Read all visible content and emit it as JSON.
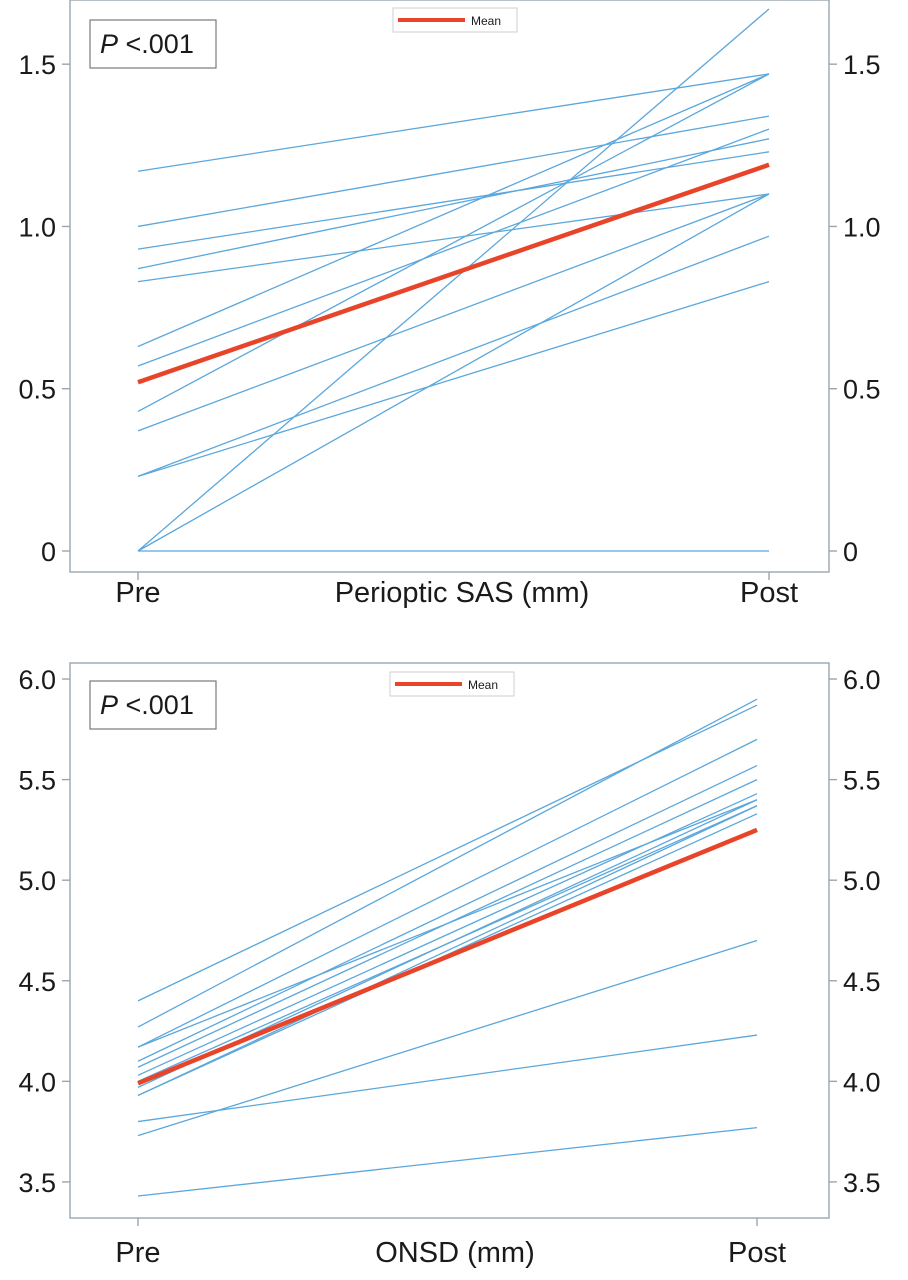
{
  "chart_data": [
    {
      "type": "line",
      "xlabel": "Perioptic SAS  (mm)",
      "ylabel": "",
      "x": [
        "Pre",
        "Post"
      ],
      "ylim": [
        0,
        1.67
      ],
      "yticks": [
        "0",
        "0.5",
        "1.0",
        "1.5"
      ],
      "ytick_values": [
        0,
        0.5,
        1.0,
        1.5
      ],
      "annotation": {
        "italic": "P",
        "text": " <.001"
      },
      "legend": {
        "label": "Mean",
        "position": "top-center"
      },
      "mean": {
        "name": "Mean",
        "color": "#e8442a",
        "values": [
          0.52,
          1.19
        ]
      },
      "individual_color": "#5ba7dc",
      "individual": [
        [
          1.17,
          1.47
        ],
        [
          1.0,
          1.34
        ],
        [
          0.93,
          1.23
        ],
        [
          0.87,
          1.27
        ],
        [
          0.83,
          1.1
        ],
        [
          0.63,
          1.47
        ],
        [
          0.57,
          1.3
        ],
        [
          0.43,
          1.47
        ],
        [
          0.37,
          1.1
        ],
        [
          0.23,
          0.97
        ],
        [
          0.23,
          0.83
        ],
        [
          0.0,
          1.67
        ],
        [
          0.0,
          1.1
        ],
        [
          0.0,
          0.0
        ]
      ]
    },
    {
      "type": "line",
      "xlabel": "ONSD (mm)",
      "ylabel": "",
      "x": [
        "Pre",
        "Post"
      ],
      "ylim": [
        3.43,
        6.03
      ],
      "yticks": [
        "3.5",
        "4.0",
        "4.5",
        "5.0",
        "5.5",
        "6.0"
      ],
      "ytick_values": [
        3.5,
        4.0,
        4.5,
        5.0,
        5.5,
        6.0
      ],
      "annotation": {
        "italic": "P",
        "text": " <.001"
      },
      "legend": {
        "label": "Mean",
        "position": "top-center"
      },
      "mean": {
        "name": "Mean",
        "color": "#e8442a",
        "values": [
          3.99,
          5.25
        ]
      },
      "individual_color": "#5ba7dc",
      "individual": [
        [
          4.4,
          5.87
        ],
        [
          4.27,
          5.9
        ],
        [
          4.17,
          5.7
        ],
        [
          4.17,
          5.4
        ],
        [
          4.1,
          5.57
        ],
        [
          4.07,
          5.5
        ],
        [
          4.03,
          5.43
        ],
        [
          4.0,
          5.37
        ],
        [
          3.97,
          5.4
        ],
        [
          3.93,
          5.33
        ],
        [
          3.93,
          5.37
        ],
        [
          3.8,
          4.23
        ],
        [
          3.73,
          4.7
        ],
        [
          3.43,
          3.77
        ]
      ]
    }
  ]
}
